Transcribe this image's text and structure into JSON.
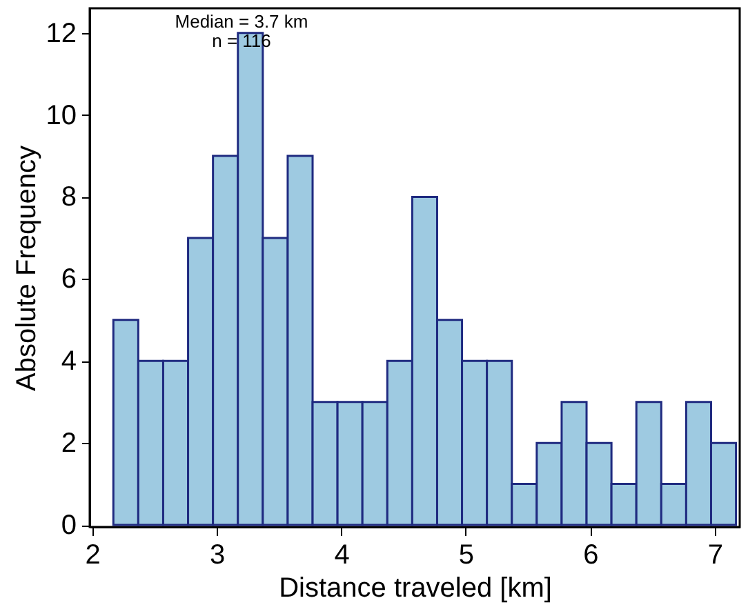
{
  "chart_data": {
    "type": "histogram",
    "xlabel": "Distance traveled [km]",
    "ylabel": "Absolute Frequency",
    "bins": [
      2.17,
      2.37,
      2.57,
      2.77,
      2.97,
      3.17,
      3.37,
      3.57,
      3.77,
      3.97,
      4.17,
      4.37,
      4.57,
      4.77,
      4.97,
      5.17,
      5.37,
      5.57,
      5.77,
      5.97,
      6.17,
      6.37,
      6.57,
      6.77,
      6.97,
      7.17
    ],
    "values": [
      5,
      4,
      4,
      7,
      9,
      12,
      7,
      9,
      3,
      3,
      3,
      4,
      8,
      5,
      4,
      4,
      1,
      2,
      3,
      2,
      1,
      3,
      1,
      3,
      2
    ],
    "color": "#9ecae1",
    "xlim": [
      1.98,
      7.2
    ],
    "ylim": [
      -0.05,
      12.6
    ],
    "xticks": [
      2,
      3,
      4,
      5,
      6,
      7
    ],
    "yticks": [
      0,
      2,
      4,
      6,
      8,
      10,
      12
    ],
    "annotations": [
      "Median = 3.7 km",
      "n = 116"
    ],
    "grid": false
  }
}
